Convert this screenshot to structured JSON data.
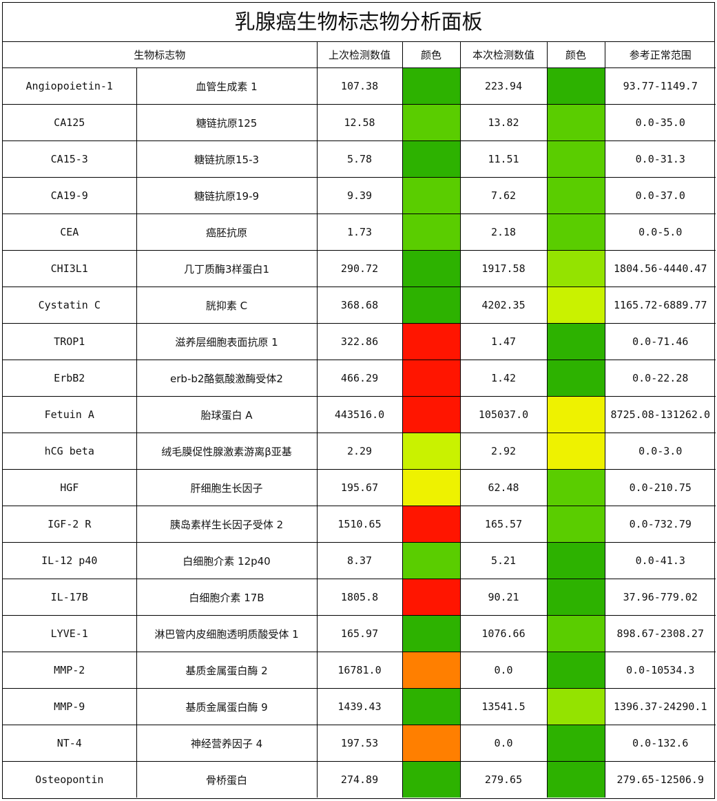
{
  "title": "乳腺癌生物标志物分析面板",
  "headers": {
    "marker": "生物标志物",
    "prev_value": "上次检测数值",
    "prev_color": "颜色",
    "curr_value": "本次检测数值",
    "curr_color": "颜色",
    "range": "参考正常范围"
  },
  "colors": {
    "green": "#2db200",
    "light_green": "#5acd00",
    "yellow_green": "#94e300",
    "lime": "#c9f200",
    "yellow": "#eef200",
    "orange": "#ff7f00",
    "red": "#ff1500"
  },
  "rows": [
    {
      "code": "Angiopoietin-1",
      "name": "血管生成素 1",
      "prev": "107.38",
      "prev_color": "#2db200",
      "curr": "223.94",
      "curr_color": "#2db200",
      "range": "93.77-1149.7"
    },
    {
      "code": "CA125",
      "name": "糖链抗原125",
      "prev": "12.58",
      "prev_color": "#5acd00",
      "curr": "13.82",
      "curr_color": "#5acd00",
      "range": "0.0-35.0"
    },
    {
      "code": "CA15-3",
      "name": "糖链抗原15-3",
      "prev": "5.78",
      "prev_color": "#2db200",
      "curr": "11.51",
      "curr_color": "#5acd00",
      "range": "0.0-31.3"
    },
    {
      "code": "CA19-9",
      "name": "糖链抗原19-9",
      "prev": "9.39",
      "prev_color": "#5acd00",
      "curr": "7.62",
      "curr_color": "#5acd00",
      "range": "0.0-37.0"
    },
    {
      "code": "CEA",
      "name": "癌胚抗原",
      "prev": "1.73",
      "prev_color": "#5acd00",
      "curr": "2.18",
      "curr_color": "#5acd00",
      "range": "0.0-5.0"
    },
    {
      "code": "CHI3L1",
      "name": "几丁质酶3样蛋白1",
      "prev": "290.72",
      "prev_color": "#2db200",
      "curr": "1917.58",
      "curr_color": "#94e300",
      "range": "1804.56-4440.47"
    },
    {
      "code": "Cystatin C",
      "name": "胱抑素 C",
      "prev": "368.68",
      "prev_color": "#2db200",
      "curr": "4202.35",
      "curr_color": "#c9f200",
      "range": "1165.72-6889.77"
    },
    {
      "code": "TROP1",
      "name": "滋养层细胞表面抗原 1",
      "prev": "322.86",
      "prev_color": "#ff1500",
      "curr": "1.47",
      "curr_color": "#2db200",
      "range": "0.0-71.46"
    },
    {
      "code": "ErbB2",
      "name": "erb-b2酪氨酸激酶受体2",
      "prev": "466.29",
      "prev_color": "#ff1500",
      "curr": "1.42",
      "curr_color": "#2db200",
      "range": "0.0-22.28"
    },
    {
      "code": "Fetuin A",
      "name": "胎球蛋白 A",
      "prev": "443516.0",
      "prev_color": "#ff1500",
      "curr": "105037.0",
      "curr_color": "#eef200",
      "range": "8725.08-131262.0"
    },
    {
      "code": "hCG beta",
      "name": "绒毛膜促性腺激素游离β亚基",
      "prev": "2.29",
      "prev_color": "#c9f200",
      "curr": "2.92",
      "curr_color": "#eef200",
      "range": "0.0-3.0"
    },
    {
      "code": "HGF",
      "name": "肝细胞生长因子",
      "prev": "195.67",
      "prev_color": "#eef200",
      "curr": "62.48",
      "curr_color": "#5acd00",
      "range": "0.0-210.75"
    },
    {
      "code": "IGF-2 R",
      "name": "胰岛素样生长因子受体 2",
      "prev": "1510.65",
      "prev_color": "#ff1500",
      "curr": "165.57",
      "curr_color": "#5acd00",
      "range": "0.0-732.79"
    },
    {
      "code": "IL-12 p40",
      "name": "白细胞介素 12p40",
      "prev": "8.37",
      "prev_color": "#5acd00",
      "curr": "5.21",
      "curr_color": "#2db200",
      "range": "0.0-41.3"
    },
    {
      "code": "IL-17B",
      "name": "白细胞介素 17B",
      "prev": "1805.8",
      "prev_color": "#ff1500",
      "curr": "90.21",
      "curr_color": "#2db200",
      "range": "37.96-779.02"
    },
    {
      "code": "LYVE-1",
      "name": "淋巴管内皮细胞透明质酸受体 1",
      "prev": "165.97",
      "prev_color": "#2db200",
      "curr": "1076.66",
      "curr_color": "#5acd00",
      "range": "898.67-2308.27"
    },
    {
      "code": "MMP-2",
      "name": "基质金属蛋白酶 2",
      "prev": "16781.0",
      "prev_color": "#ff7f00",
      "curr": "0.0",
      "curr_color": "#2db200",
      "range": "0.0-10534.3"
    },
    {
      "code": "MMP-9",
      "name": "基质金属蛋白酶 9",
      "prev": "1439.43",
      "prev_color": "#2db200",
      "curr": "13541.5",
      "curr_color": "#94e300",
      "range": "1396.37-24290.1"
    },
    {
      "code": "NT-4",
      "name": "神经营养因子 4",
      "prev": "197.53",
      "prev_color": "#ff7f00",
      "curr": "0.0",
      "curr_color": "#2db200",
      "range": "0.0-132.6"
    },
    {
      "code": "Osteopontin",
      "name": "骨桥蛋白",
      "prev": "274.89",
      "prev_color": "#2db200",
      "curr": "279.65",
      "curr_color": "#2db200",
      "range": "279.65-12506.9"
    }
  ]
}
